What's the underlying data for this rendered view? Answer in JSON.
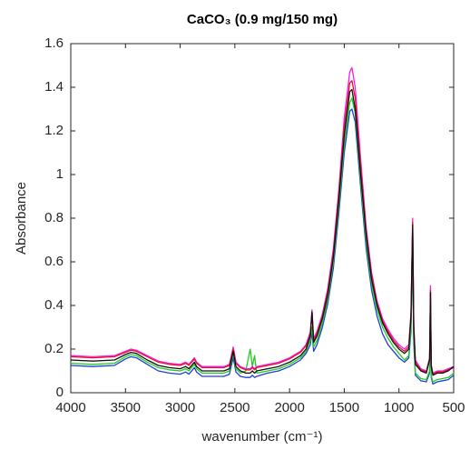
{
  "chart_data": {
    "type": "line",
    "title": "CaCO₃ (0.9 mg/150 mg)",
    "x_label": "wavenumber (cm⁻¹)",
    "y_label": "Absorbance",
    "xlim": [
      4000,
      500
    ],
    "xticks": [
      4000,
      3500,
      3000,
      2500,
      2000,
      1500,
      1000,
      500
    ],
    "ylim": [
      0,
      1.6
    ],
    "yticks": [
      0,
      0.2,
      0.4,
      0.6,
      0.8,
      1,
      1.2,
      1.4,
      1.6
    ],
    "grid": false,
    "x": [
      4000,
      3800,
      3600,
      3500,
      3450,
      3400,
      3300,
      3200,
      3100,
      3000,
      2950,
      2920,
      2870,
      2850,
      2800,
      2700,
      2600,
      2550,
      2515,
      2490,
      2450,
      2400,
      2360,
      2340,
      2320,
      2300,
      2200,
      2100,
      2000,
      1900,
      1850,
      1810,
      1795,
      1780,
      1750,
      1700,
      1650,
      1600,
      1550,
      1500,
      1450,
      1430,
      1400,
      1350,
      1300,
      1250,
      1200,
      1150,
      1100,
      1050,
      1000,
      950,
      910,
      890,
      875,
      865,
      850,
      800,
      750,
      720,
      712,
      705,
      690,
      650,
      600,
      550,
      500
    ],
    "series": [
      {
        "color": "#1f3fd6",
        "values": [
          0.125,
          0.12,
          0.125,
          0.155,
          0.165,
          0.16,
          0.13,
          0.1,
          0.09,
          0.085,
          0.095,
          0.085,
          0.115,
          0.095,
          0.075,
          0.075,
          0.075,
          0.085,
          0.16,
          0.095,
          0.075,
          0.07,
          0.07,
          0.08,
          0.07,
          0.075,
          0.09,
          0.1,
          0.12,
          0.15,
          0.18,
          0.22,
          0.28,
          0.19,
          0.22,
          0.3,
          0.41,
          0.57,
          0.82,
          1.1,
          1.29,
          1.3,
          1.24,
          0.94,
          0.66,
          0.47,
          0.35,
          0.27,
          0.22,
          0.19,
          0.16,
          0.14,
          0.16,
          0.28,
          0.68,
          0.23,
          0.08,
          0.055,
          0.05,
          0.09,
          0.33,
          0.07,
          0.04,
          0.05,
          0.055,
          0.06,
          0.08
        ]
      },
      {
        "color": "#22cc22",
        "values": [
          0.135,
          0.13,
          0.135,
          0.165,
          0.175,
          0.17,
          0.14,
          0.115,
          0.105,
          0.1,
          0.11,
          0.1,
          0.13,
          0.11,
          0.09,
          0.09,
          0.09,
          0.1,
          0.18,
          0.11,
          0.09,
          0.1,
          0.2,
          0.12,
          0.17,
          0.09,
          0.1,
          0.11,
          0.13,
          0.16,
          0.19,
          0.24,
          0.3,
          0.21,
          0.24,
          0.32,
          0.43,
          0.6,
          0.85,
          1.14,
          1.33,
          1.35,
          1.28,
          0.97,
          0.69,
          0.5,
          0.38,
          0.3,
          0.25,
          0.21,
          0.18,
          0.15,
          0.17,
          0.3,
          0.7,
          0.25,
          0.09,
          0.065,
          0.06,
          0.1,
          0.35,
          0.08,
          0.05,
          0.06,
          0.065,
          0.07,
          0.09
        ]
      },
      {
        "color": "#ee22ee",
        "values": [
          0.17,
          0.165,
          0.17,
          0.19,
          0.2,
          0.195,
          0.17,
          0.145,
          0.135,
          0.13,
          0.14,
          0.13,
          0.16,
          0.14,
          0.12,
          0.12,
          0.12,
          0.13,
          0.21,
          0.14,
          0.12,
          0.11,
          0.11,
          0.12,
          0.11,
          0.12,
          0.13,
          0.14,
          0.16,
          0.19,
          0.22,
          0.28,
          0.38,
          0.25,
          0.28,
          0.36,
          0.48,
          0.66,
          0.93,
          1.26,
          1.47,
          1.49,
          1.4,
          1.07,
          0.76,
          0.55,
          0.42,
          0.34,
          0.29,
          0.25,
          0.22,
          0.2,
          0.22,
          0.37,
          0.8,
          0.32,
          0.15,
          0.11,
          0.1,
          0.16,
          0.49,
          0.13,
          0.09,
          0.1,
          0.1,
          0.11,
          0.12
        ]
      },
      {
        "color": "#e8102a",
        "values": [
          0.165,
          0.16,
          0.165,
          0.185,
          0.195,
          0.19,
          0.165,
          0.14,
          0.13,
          0.125,
          0.135,
          0.125,
          0.155,
          0.135,
          0.115,
          0.115,
          0.115,
          0.125,
          0.2,
          0.135,
          0.115,
          0.105,
          0.105,
          0.115,
          0.105,
          0.115,
          0.125,
          0.135,
          0.155,
          0.185,
          0.215,
          0.27,
          0.37,
          0.24,
          0.27,
          0.35,
          0.47,
          0.64,
          0.91,
          1.22,
          1.42,
          1.43,
          1.35,
          1.04,
          0.74,
          0.54,
          0.41,
          0.33,
          0.28,
          0.24,
          0.21,
          0.19,
          0.21,
          0.36,
          0.78,
          0.31,
          0.14,
          0.105,
          0.095,
          0.155,
          0.47,
          0.125,
          0.085,
          0.095,
          0.095,
          0.105,
          0.115
        ]
      },
      {
        "color": "#111111",
        "values": [
          0.15,
          0.145,
          0.15,
          0.175,
          0.185,
          0.18,
          0.15,
          0.125,
          0.115,
          0.11,
          0.12,
          0.11,
          0.14,
          0.12,
          0.1,
          0.1,
          0.1,
          0.11,
          0.19,
          0.12,
          0.1,
          0.09,
          0.09,
          0.1,
          0.09,
          0.1,
          0.11,
          0.12,
          0.14,
          0.17,
          0.2,
          0.26,
          0.37,
          0.23,
          0.26,
          0.34,
          0.45,
          0.62,
          0.88,
          1.18,
          1.38,
          1.39,
          1.3,
          1.0,
          0.72,
          0.52,
          0.4,
          0.32,
          0.27,
          0.23,
          0.2,
          0.18,
          0.2,
          0.35,
          0.77,
          0.3,
          0.13,
          0.1,
          0.09,
          0.15,
          0.46,
          0.12,
          0.08,
          0.09,
          0.09,
          0.1,
          0.12
        ]
      }
    ]
  }
}
